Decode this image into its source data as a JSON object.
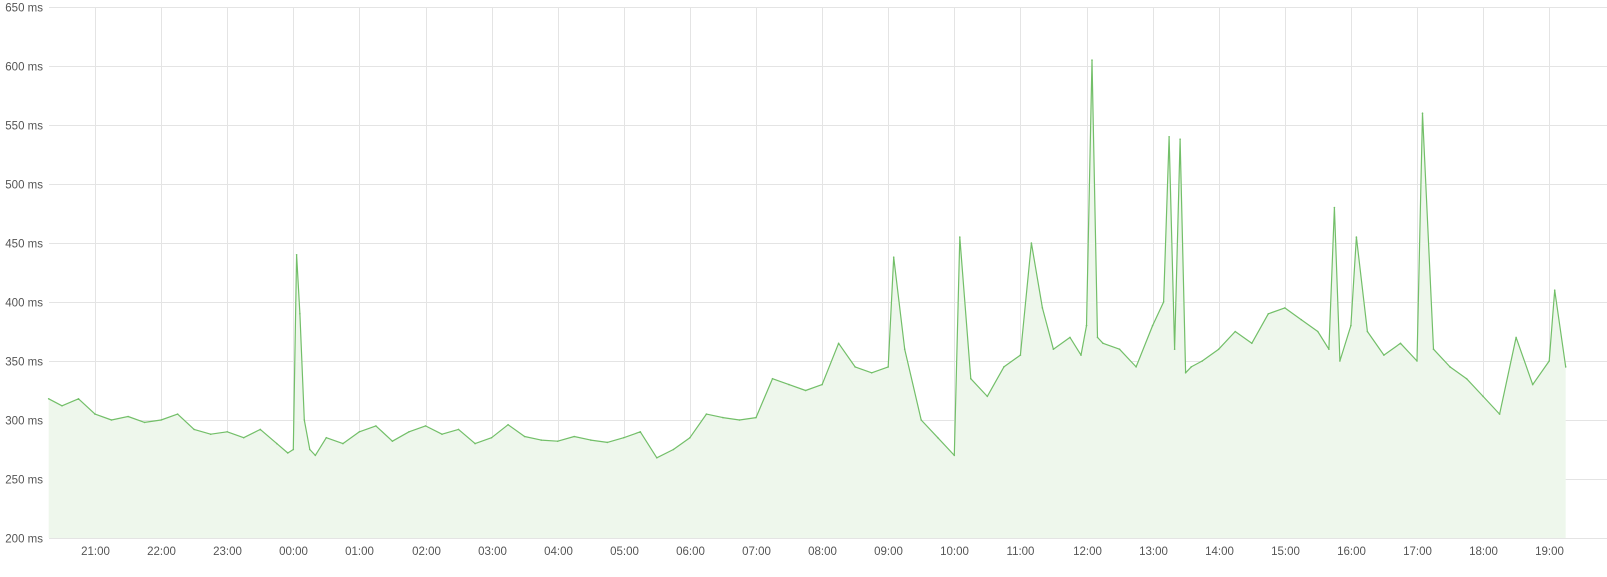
{
  "colors": {
    "line": "#73bf69",
    "fill": "#eef7ec",
    "grid": "#e4e4e4",
    "text": "#555555",
    "background": "#ffffff"
  },
  "chart_data": {
    "type": "area",
    "title": "",
    "xlabel": "",
    "ylabel": "",
    "unit": "ms",
    "grid": true,
    "legend": "none",
    "ylim": [
      200,
      650
    ],
    "xlim": [
      "20:18",
      "19:15"
    ],
    "x_ticks": [
      "21:00",
      "22:00",
      "23:00",
      "00:00",
      "01:00",
      "02:00",
      "03:00",
      "04:00",
      "05:00",
      "06:00",
      "07:00",
      "08:00",
      "09:00",
      "10:00",
      "11:00",
      "12:00",
      "13:00",
      "14:00",
      "15:00",
      "16:00",
      "17:00",
      "18:00",
      "19:00"
    ],
    "y_ticks": [
      "200 ms",
      "250 ms",
      "300 ms",
      "350 ms",
      "400 ms",
      "450 ms",
      "500 ms",
      "550 ms",
      "600 ms",
      "650 ms"
    ],
    "series": [
      {
        "name": "",
        "x": [
          "20:18",
          "20:30",
          "20:45",
          "21:00",
          "21:15",
          "21:30",
          "21:45",
          "22:00",
          "22:15",
          "22:30",
          "22:45",
          "23:00",
          "23:15",
          "23:30",
          "23:45",
          "23:55",
          "00:00",
          "00:03",
          "00:06",
          "00:10",
          "00:15",
          "00:20",
          "00:30",
          "00:45",
          "01:00",
          "01:15",
          "01:30",
          "01:45",
          "02:00",
          "02:15",
          "02:30",
          "02:45",
          "03:00",
          "03:15",
          "03:30",
          "03:45",
          "04:00",
          "04:15",
          "04:30",
          "04:45",
          "05:00",
          "05:15",
          "05:30",
          "05:45",
          "06:00",
          "06:15",
          "06:30",
          "06:45",
          "07:00",
          "07:15",
          "07:30",
          "07:45",
          "08:00",
          "08:15",
          "08:30",
          "08:45",
          "09:00",
          "09:05",
          "09:15",
          "09:30",
          "09:45",
          "10:00",
          "10:05",
          "10:15",
          "10:30",
          "10:45",
          "11:00",
          "11:10",
          "11:20",
          "11:30",
          "11:45",
          "11:55",
          "12:00",
          "12:05",
          "12:10",
          "12:15",
          "12:30",
          "12:45",
          "13:00",
          "13:10",
          "13:15",
          "13:20",
          "13:25",
          "13:30",
          "13:35",
          "13:45",
          "14:00",
          "14:15",
          "14:30",
          "14:45",
          "15:00",
          "15:15",
          "15:30",
          "15:40",
          "15:45",
          "15:50",
          "16:00",
          "16:05",
          "16:15",
          "16:30",
          "16:45",
          "17:00",
          "17:05",
          "17:15",
          "17:30",
          "17:45",
          "18:00",
          "18:15",
          "18:30",
          "18:45",
          "19:00",
          "19:05",
          "19:15"
        ],
        "y": [
          318,
          312,
          318,
          305,
          300,
          303,
          298,
          300,
          305,
          292,
          288,
          290,
          285,
          292,
          280,
          272,
          275,
          440,
          390,
          300,
          275,
          270,
          285,
          280,
          290,
          295,
          282,
          290,
          295,
          288,
          292,
          280,
          285,
          296,
          286,
          283,
          282,
          286,
          283,
          281,
          285,
          290,
          268,
          275,
          285,
          305,
          302,
          300,
          302,
          335,
          330,
          325,
          330,
          365,
          345,
          340,
          345,
          438,
          360,
          300,
          285,
          270,
          455,
          335,
          320,
          345,
          355,
          450,
          395,
          360,
          370,
          355,
          380,
          605,
          370,
          365,
          360,
          345,
          380,
          400,
          540,
          360,
          538,
          340,
          345,
          350,
          360,
          375,
          365,
          390,
          395,
          385,
          375,
          360,
          480,
          350,
          380,
          455,
          375,
          355,
          365,
          350,
          560,
          360,
          345,
          335,
          320,
          305,
          370,
          330,
          350,
          410,
          345
        ]
      }
    ]
  }
}
